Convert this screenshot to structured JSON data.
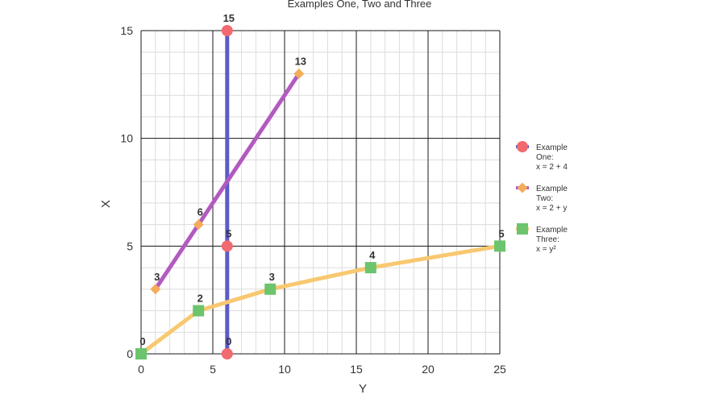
{
  "chart_data": {
    "type": "line",
    "title": "Examples One, Two and Three",
    "xlabel": "Y",
    "ylabel": "X",
    "xlim": [
      0,
      25
    ],
    "ylim": [
      0,
      15
    ],
    "xticks": [
      "0",
      "5",
      "10",
      "15",
      "20",
      "25"
    ],
    "yticks": [
      "0",
      "5",
      "10",
      "15"
    ],
    "grid": true,
    "legend_position": "right",
    "series": [
      {
        "name": "Example One",
        "legend_lines": [
          "Example",
          "One:",
          "x = 2 + 4"
        ],
        "line_color": "#5b5bc8",
        "marker": "circle",
        "marker_color": "#f06a70",
        "x": [
          6,
          6,
          6
        ],
        "y": [
          0,
          5,
          15
        ],
        "labels": [
          "0",
          "5",
          "15"
        ]
      },
      {
        "name": "Example Two",
        "legend_lines": [
          "Example",
          "Two:",
          "x = 2 + y"
        ],
        "line_color": "#b25ac0",
        "marker": "diamond",
        "marker_color": "#f5ac5a",
        "x": [
          1,
          4,
          11
        ],
        "y": [
          3,
          6,
          13
        ],
        "labels": [
          "3",
          "6",
          "13"
        ]
      },
      {
        "name": "Example Three",
        "legend_lines": [
          "Example",
          "Three:",
          "x = y²"
        ],
        "line_color": "#f8c870",
        "marker": "square",
        "marker_color": "#6cc46c",
        "x": [
          0,
          4,
          9,
          16,
          25
        ],
        "y": [
          0,
          2,
          3,
          4,
          5
        ],
        "labels": [
          "0",
          "2",
          "3",
          "4",
          "5"
        ]
      }
    ]
  }
}
